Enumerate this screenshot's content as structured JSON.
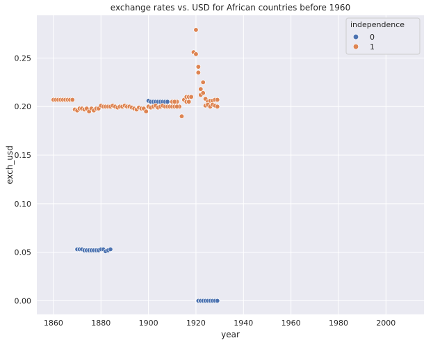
{
  "chart_data": {
    "type": "scatter",
    "title": "exchange rates vs. USD for African countries before 1960",
    "xlabel": "year",
    "ylabel": "exch_usd",
    "xlim": [
      1853,
      2016
    ],
    "ylim": [
      -0.014,
      0.294
    ],
    "xticks": [
      1860,
      1880,
      1900,
      1920,
      1940,
      1960,
      1980,
      2000
    ],
    "yticks": [
      0.0,
      0.05,
      0.1,
      0.15,
      0.2,
      0.25
    ],
    "ytick_labels": [
      "0.00",
      "0.05",
      "0.10",
      "0.15",
      "0.20",
      "0.25"
    ],
    "grid": true,
    "legend": {
      "title": "independence",
      "placement": "top-right"
    },
    "series": [
      {
        "name": "0",
        "color": "#4c72b0",
        "points": [
          [
            1870,
            0.053
          ],
          [
            1871,
            0.053
          ],
          [
            1872,
            0.053
          ],
          [
            1873,
            0.052
          ],
          [
            1874,
            0.052
          ],
          [
            1875,
            0.052
          ],
          [
            1876,
            0.052
          ],
          [
            1877,
            0.052
          ],
          [
            1878,
            0.052
          ],
          [
            1879,
            0.052
          ],
          [
            1880,
            0.053
          ],
          [
            1881,
            0.053
          ],
          [
            1882,
            0.051
          ],
          [
            1883,
            0.052
          ],
          [
            1884,
            0.053
          ],
          [
            1900,
            0.206
          ],
          [
            1901,
            0.205
          ],
          [
            1902,
            0.205
          ],
          [
            1903,
            0.205
          ],
          [
            1904,
            0.205
          ],
          [
            1905,
            0.205
          ],
          [
            1906,
            0.205
          ],
          [
            1907,
            0.205
          ],
          [
            1908,
            0.205
          ],
          [
            1921,
            0.0
          ],
          [
            1922,
            0.0
          ],
          [
            1923,
            0.0
          ],
          [
            1924,
            0.0
          ],
          [
            1925,
            0.0
          ],
          [
            1926,
            0.0
          ],
          [
            1927,
            0.0
          ],
          [
            1928,
            0.0
          ],
          [
            1929,
            0.0
          ]
        ]
      },
      {
        "name": "1",
        "color": "#dd8452",
        "points": [
          [
            1860,
            0.207
          ],
          [
            1861,
            0.207
          ],
          [
            1862,
            0.207
          ],
          [
            1863,
            0.207
          ],
          [
            1864,
            0.207
          ],
          [
            1865,
            0.207
          ],
          [
            1866,
            0.207
          ],
          [
            1867,
            0.207
          ],
          [
            1868,
            0.207
          ],
          [
            1869,
            0.197
          ],
          [
            1870,
            0.196
          ],
          [
            1871,
            0.198
          ],
          [
            1872,
            0.198
          ],
          [
            1873,
            0.197
          ],
          [
            1874,
            0.198
          ],
          [
            1875,
            0.195
          ],
          [
            1876,
            0.198
          ],
          [
            1877,
            0.196
          ],
          [
            1878,
            0.198
          ],
          [
            1879,
            0.198
          ],
          [
            1880,
            0.201
          ],
          [
            1881,
            0.2
          ],
          [
            1882,
            0.2
          ],
          [
            1883,
            0.2
          ],
          [
            1884,
            0.2
          ],
          [
            1885,
            0.201
          ],
          [
            1886,
            0.2
          ],
          [
            1887,
            0.199
          ],
          [
            1888,
            0.2
          ],
          [
            1889,
            0.2
          ],
          [
            1890,
            0.201
          ],
          [
            1891,
            0.2
          ],
          [
            1892,
            0.2
          ],
          [
            1893,
            0.199
          ],
          [
            1894,
            0.198
          ],
          [
            1895,
            0.197
          ],
          [
            1896,
            0.199
          ],
          [
            1897,
            0.198
          ],
          [
            1898,
            0.198
          ],
          [
            1899,
            0.195
          ],
          [
            1900,
            0.2
          ],
          [
            1901,
            0.199
          ],
          [
            1902,
            0.2
          ],
          [
            1903,
            0.201
          ],
          [
            1904,
            0.199
          ],
          [
            1905,
            0.2
          ],
          [
            1906,
            0.201
          ],
          [
            1907,
            0.2
          ],
          [
            1908,
            0.2
          ],
          [
            1909,
            0.2
          ],
          [
            1910,
            0.2
          ],
          [
            1911,
            0.2
          ],
          [
            1912,
            0.205
          ],
          [
            1913,
            0.2
          ],
          [
            1910,
            0.205
          ],
          [
            1911,
            0.205
          ],
          [
            1912,
            0.2
          ],
          [
            1914,
            0.19
          ],
          [
            1915,
            0.207
          ],
          [
            1916,
            0.21
          ],
          [
            1916,
            0.205
          ],
          [
            1917,
            0.21
          ],
          [
            1917,
            0.205
          ],
          [
            1918,
            0.21
          ],
          [
            1919,
            0.256
          ],
          [
            1920,
            0.279
          ],
          [
            1920,
            0.254
          ],
          [
            1921,
            0.241
          ],
          [
            1921,
            0.235
          ],
          [
            1922,
            0.212
          ],
          [
            1922,
            0.218
          ],
          [
            1923,
            0.214
          ],
          [
            1923,
            0.225
          ],
          [
            1924,
            0.208
          ],
          [
            1924,
            0.201
          ],
          [
            1925,
            0.205
          ],
          [
            1925,
            0.202
          ],
          [
            1926,
            0.2
          ],
          [
            1926,
            0.206
          ],
          [
            1927,
            0.206
          ],
          [
            1927,
            0.202
          ],
          [
            1928,
            0.207
          ],
          [
            1928,
            0.201
          ],
          [
            1929,
            0.207
          ],
          [
            1929,
            0.2
          ]
        ]
      }
    ]
  }
}
